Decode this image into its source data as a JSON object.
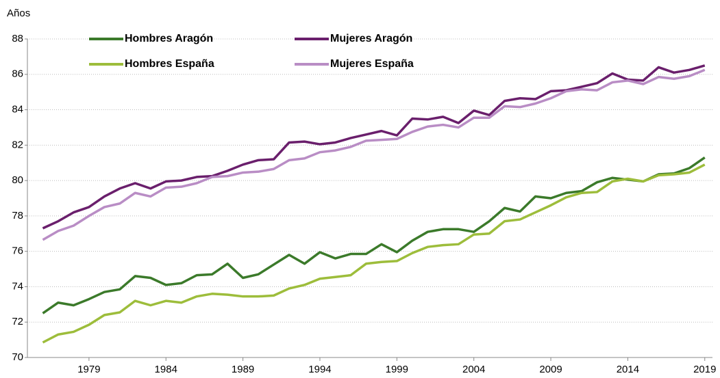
{
  "chart_data": {
    "type": "line",
    "y_axis_label": "Años",
    "x": [
      1976,
      1977,
      1978,
      1979,
      1980,
      1981,
      1982,
      1983,
      1984,
      1985,
      1986,
      1987,
      1988,
      1989,
      1990,
      1991,
      1992,
      1993,
      1994,
      1995,
      1996,
      1997,
      1998,
      1999,
      2000,
      2001,
      2002,
      2003,
      2004,
      2005,
      2006,
      2007,
      2008,
      2009,
      2010,
      2011,
      2012,
      2013,
      2014,
      2015,
      2016,
      2017,
      2018,
      2019
    ],
    "series": [
      {
        "name": "Hombres Aragón",
        "color": "#3b7a2a",
        "values": [
          72.5,
          73.1,
          72.95,
          73.3,
          73.7,
          73.85,
          74.6,
          74.5,
          74.1,
          74.2,
          74.65,
          74.7,
          75.3,
          74.5,
          74.7,
          75.25,
          75.8,
          75.3,
          75.95,
          75.6,
          75.85,
          75.85,
          76.4,
          75.95,
          76.6,
          77.1,
          77.25,
          77.25,
          77.1,
          77.7,
          78.45,
          78.25,
          79.1,
          79.0,
          79.3,
          79.4,
          79.9,
          80.15,
          80.05,
          79.95,
          80.35,
          80.4,
          80.7,
          81.3
        ]
      },
      {
        "name": "Mujeres Aragón",
        "color": "#6a1f6c",
        "values": [
          77.3,
          77.7,
          78.2,
          78.5,
          79.1,
          79.55,
          79.85,
          79.55,
          79.95,
          80.0,
          80.2,
          80.25,
          80.55,
          80.9,
          81.15,
          81.2,
          82.15,
          82.2,
          82.05,
          82.15,
          82.4,
          82.6,
          82.8,
          82.55,
          83.5,
          83.45,
          83.6,
          83.25,
          83.95,
          83.7,
          84.5,
          84.65,
          84.6,
          85.05,
          85.1,
          85.3,
          85.5,
          86.05,
          85.7,
          85.65,
          86.4,
          86.1,
          86.25,
          86.5
        ]
      },
      {
        "name": "Hombres España",
        "color": "#9dbd3b",
        "values": [
          70.85,
          71.3,
          71.45,
          71.85,
          72.4,
          72.55,
          73.2,
          72.95,
          73.2,
          73.1,
          73.45,
          73.6,
          73.55,
          73.45,
          73.45,
          73.5,
          73.9,
          74.1,
          74.45,
          74.55,
          74.65,
          75.3,
          75.4,
          75.45,
          75.9,
          76.25,
          76.35,
          76.4,
          76.95,
          77.0,
          77.7,
          77.8,
          78.2,
          78.6,
          79.05,
          79.3,
          79.35,
          79.95,
          80.1,
          79.95,
          80.3,
          80.35,
          80.45,
          80.9
        ]
      },
      {
        "name": "Mujeres España",
        "color": "#b98dc5",
        "values": [
          76.65,
          77.15,
          77.45,
          78.0,
          78.5,
          78.7,
          79.3,
          79.1,
          79.6,
          79.65,
          79.85,
          80.2,
          80.25,
          80.45,
          80.5,
          80.65,
          81.15,
          81.25,
          81.6,
          81.7,
          81.9,
          82.25,
          82.3,
          82.35,
          82.75,
          83.05,
          83.15,
          83.0,
          83.55,
          83.55,
          84.2,
          84.15,
          84.35,
          84.65,
          85.05,
          85.15,
          85.1,
          85.55,
          85.65,
          85.45,
          85.85,
          85.75,
          85.9,
          86.25
        ]
      }
    ],
    "xlim": [
      1975,
      2019.5
    ],
    "xticks": [
      1979,
      1984,
      1989,
      1994,
      1999,
      2004,
      2009,
      2014,
      2019
    ],
    "ylim": [
      70,
      88
    ],
    "yticks": [
      70,
      72,
      74,
      76,
      78,
      80,
      82,
      84,
      86,
      88
    ],
    "grid": true
  }
}
